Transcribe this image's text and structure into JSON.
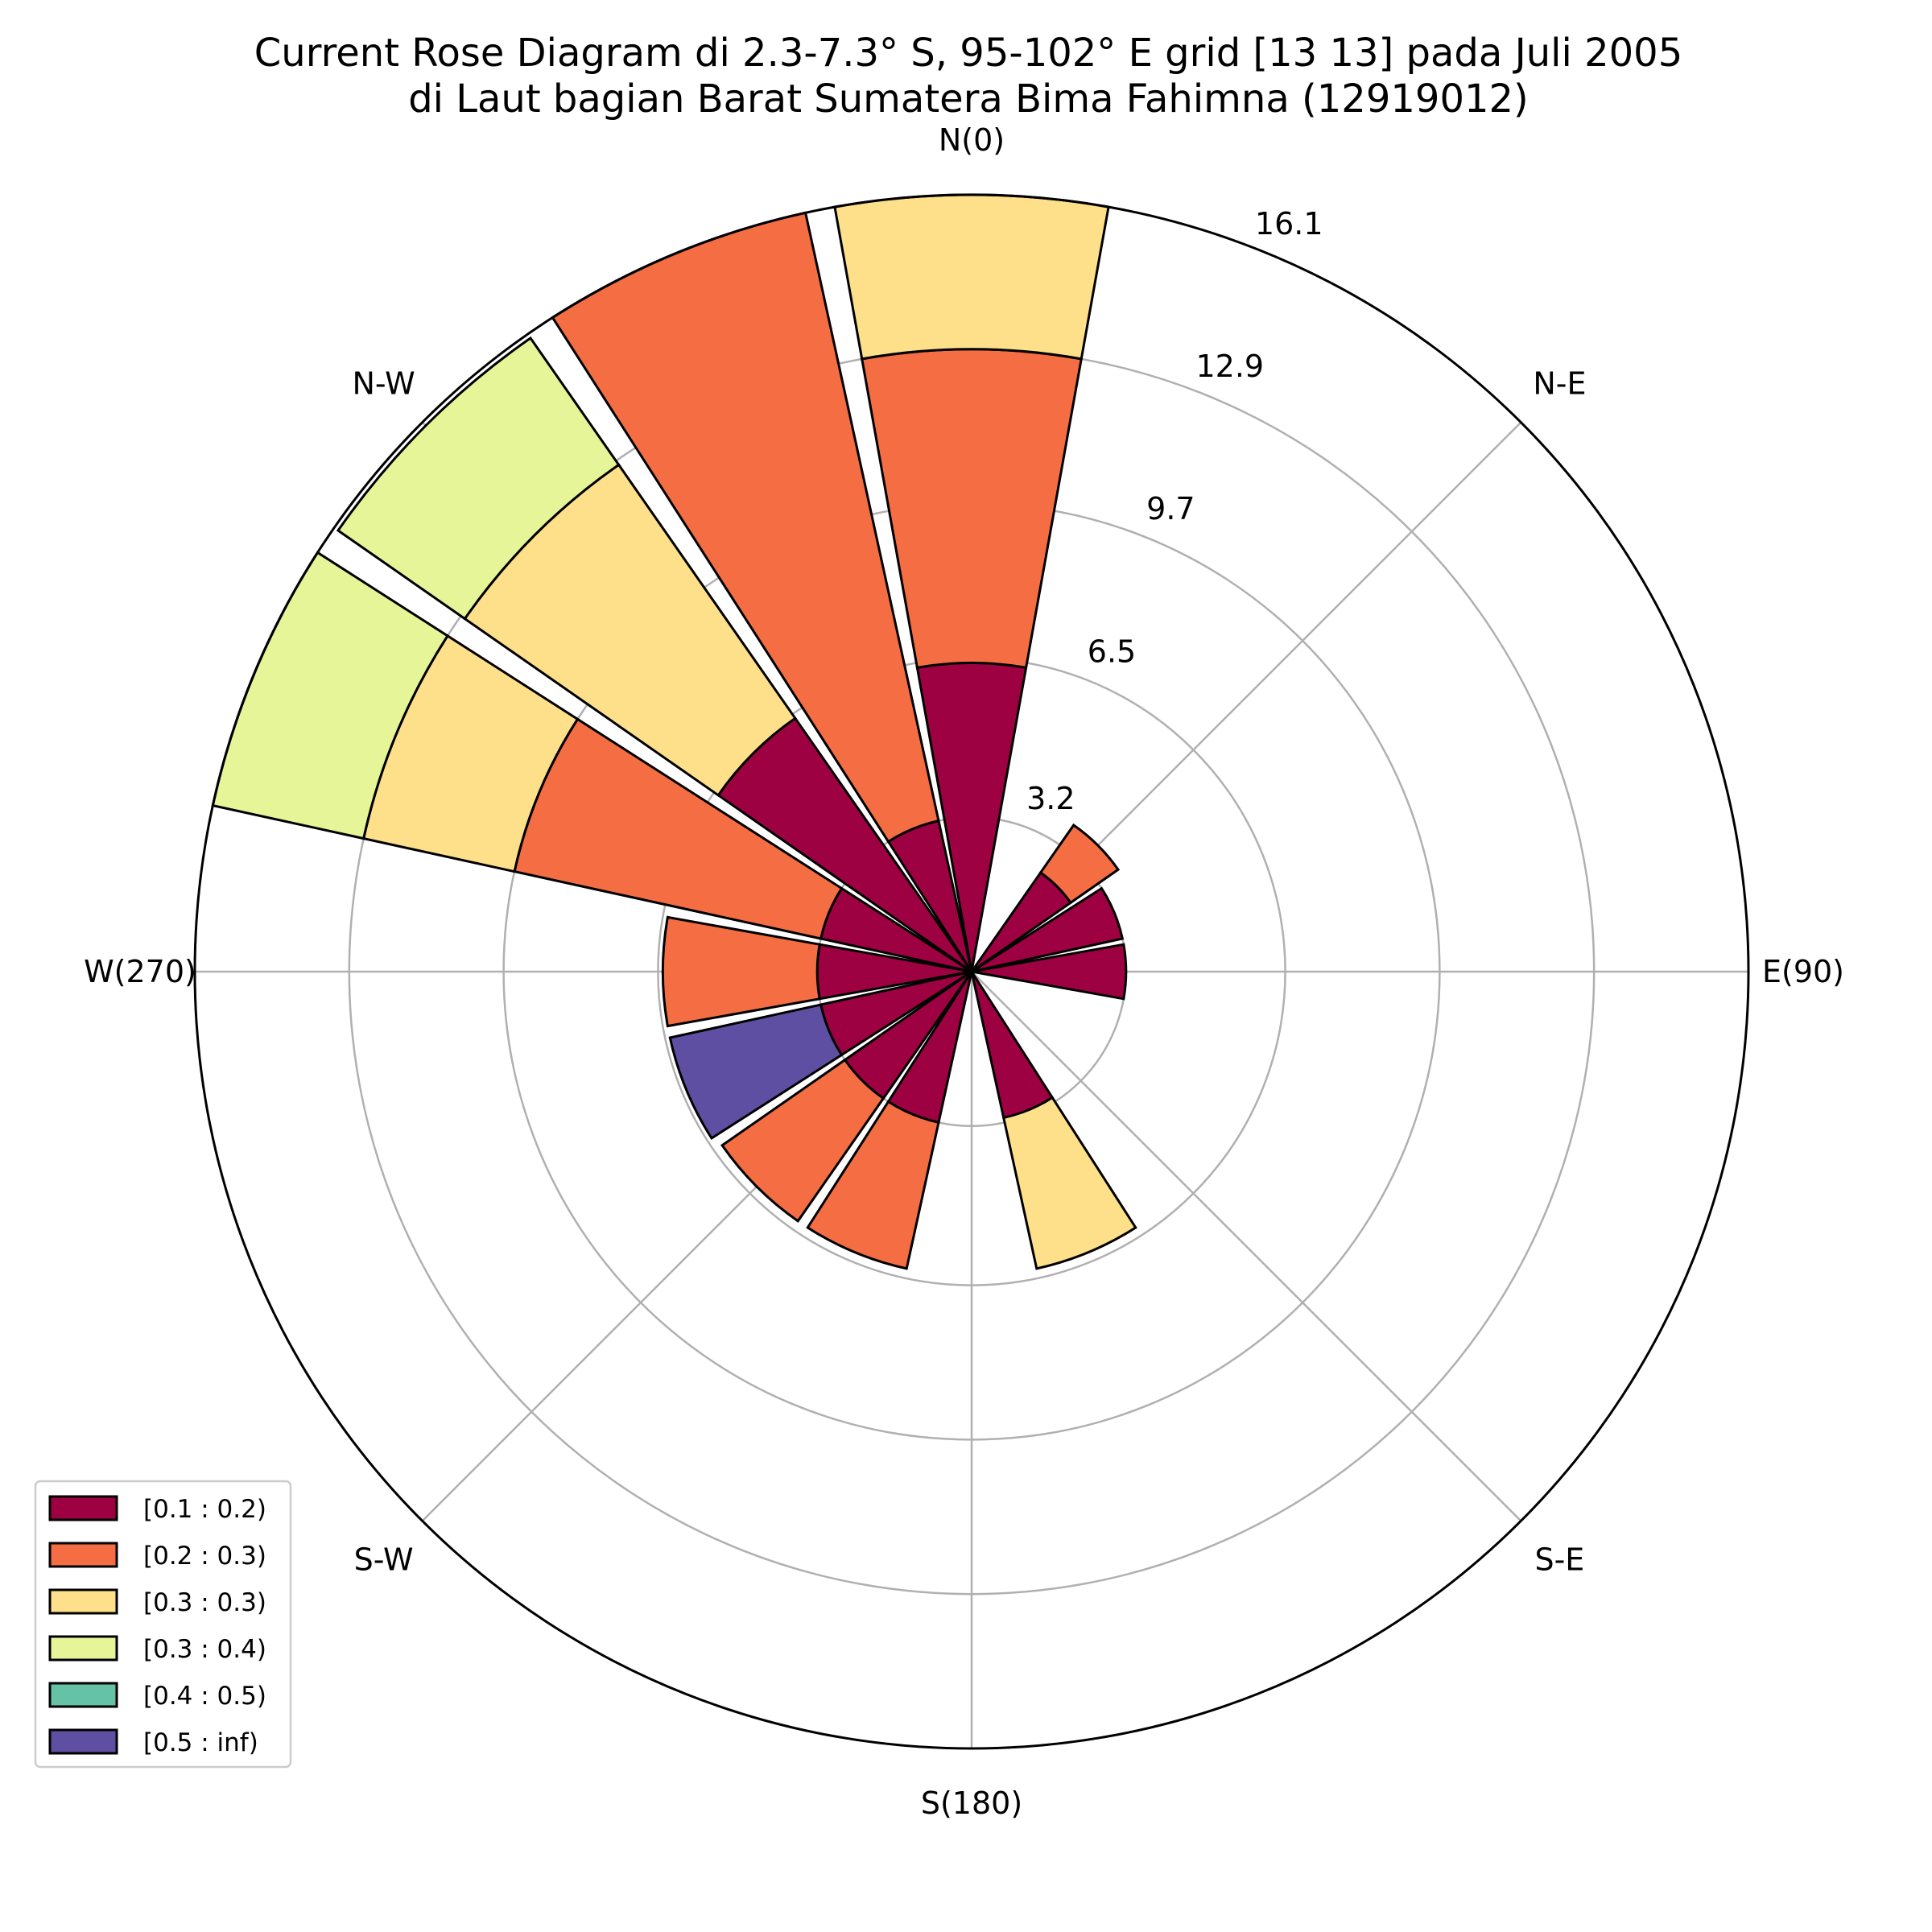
{
  "chart_data": {
    "type": "windrose",
    "title_lines": [
      "Current Rose Diagram di 2.3-7.3° S, 95-102° E grid [13 13] pada Juli 2005",
      "di Laut bagian Barat Sumatera Bima Fahimna (12919012)"
    ],
    "direction_labels": [
      {
        "angle": 0,
        "text": "N(0)"
      },
      {
        "angle": 45,
        "text": "N-E"
      },
      {
        "angle": 90,
        "text": "E(90)"
      },
      {
        "angle": 135,
        "text": "S-E"
      },
      {
        "angle": 180,
        "text": "S(180)"
      },
      {
        "angle": 225,
        "text": "S-W"
      },
      {
        "angle": 270,
        "text": "W(270)"
      },
      {
        "angle": 315,
        "text": "N-W"
      }
    ],
    "radial_ticks": [
      3.2,
      6.5,
      9.7,
      12.9,
      16.1
    ],
    "radial_tick_labels": [
      "3.2",
      "6.5",
      "9.7",
      "12.9",
      "16.1"
    ],
    "r_max": 16.1,
    "grid": true,
    "legend_position": "lower-left",
    "sector_width_deg": 22.5,
    "bins": [
      {
        "label": "[0.1 : 0.2)",
        "color": "#9e0142"
      },
      {
        "label": "[0.2 : 0.3)",
        "color": "#f46d43"
      },
      {
        "label": "[0.3 : 0.3)",
        "color": "#fee08b"
      },
      {
        "label": "[0.3 : 0.4)",
        "color": "#e6f598"
      },
      {
        "label": "[0.4 : 0.5)",
        "color": "#66c2a5"
      },
      {
        "label": "[0.5 : inf)",
        "color": "#5e4fa2"
      }
    ],
    "sectors": [
      {
        "direction": 0,
        "values": [
          6.4,
          6.5,
          3.2,
          0,
          0,
          0
        ]
      },
      {
        "direction": 45,
        "values": [
          2.5,
          1.2,
          0,
          0,
          0,
          0
        ]
      },
      {
        "direction": 67.5,
        "values": [
          3.2,
          0,
          0,
          0,
          0,
          0
        ]
      },
      {
        "direction": 90,
        "values": [
          3.2,
          0,
          0,
          0,
          0,
          0
        ]
      },
      {
        "direction": 157.5,
        "values": [
          3.1,
          0,
          3.2,
          0,
          0,
          0
        ]
      },
      {
        "direction": 202.5,
        "values": [
          3.2,
          3.1,
          0,
          0,
          0,
          0
        ]
      },
      {
        "direction": 225,
        "values": [
          3.2,
          3.1,
          0,
          0,
          0,
          0
        ]
      },
      {
        "direction": 247.5,
        "values": [
          3.2,
          0,
          0,
          0,
          0,
          3.2
        ]
      },
      {
        "direction": 270,
        "values": [
          3.2,
          3.2,
          0,
          0,
          0,
          0
        ]
      },
      {
        "direction": 292.5,
        "values": [
          3.2,
          6.5,
          3.2,
          3.2,
          0,
          0
        ]
      },
      {
        "direction": 315,
        "values": [
          6.4,
          0,
          6.4,
          3.2,
          0,
          0
        ]
      },
      {
        "direction": 337.5,
        "values": [
          3.2,
          12.9,
          0,
          0,
          0,
          0
        ]
      }
    ]
  }
}
